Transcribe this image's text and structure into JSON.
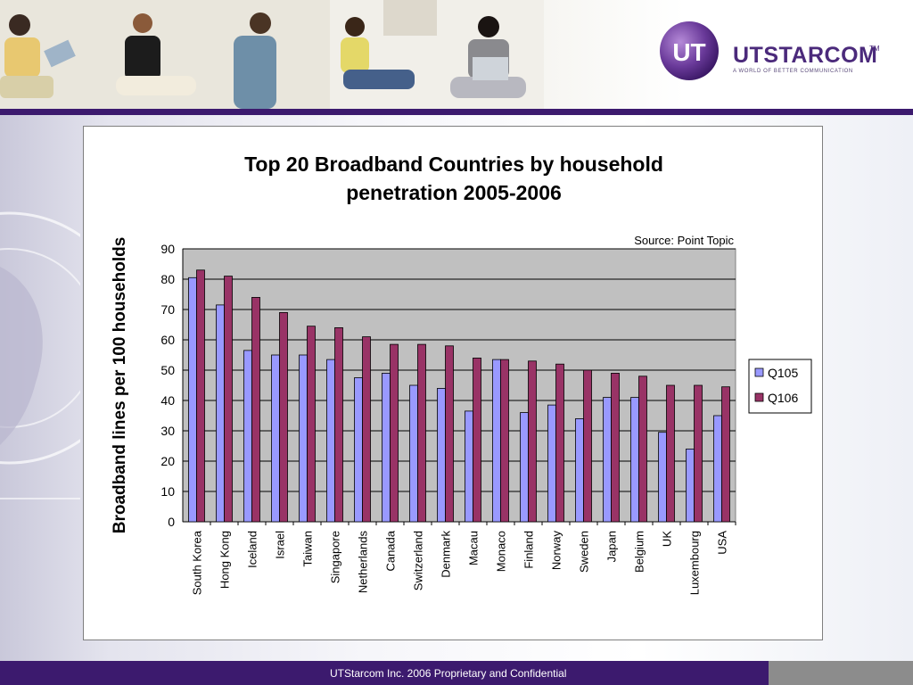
{
  "slide": {
    "logo_name": "UTSTARCOM",
    "logo_tm": "TM",
    "logo_tagline": "A WORLD OF BETTER COMMUNICATION",
    "footer_text": "UTStarcom Inc. 2006 Proprietary and Confidential"
  },
  "colors": {
    "header_rule": "#3c1a6e",
    "q105": "#9999ff",
    "q106": "#993366",
    "plot_bg": "#c0c0c0"
  },
  "chart_data": {
    "type": "bar",
    "title_lines": [
      "Top 20 Broadband Countries by household",
      "penetration 2005-2006"
    ],
    "source": "Source: Point Topic",
    "ylabel": "Broadband lines per 100 households",
    "xlabel": "",
    "ylim": [
      0,
      90
    ],
    "yticks": [
      0,
      10,
      20,
      30,
      40,
      50,
      60,
      70,
      80,
      90
    ],
    "grid": true,
    "legend_position": "right",
    "categories": [
      "South Korea",
      "Hong Kong",
      "Iceland",
      "Israel",
      "Taiwan",
      "Singapore",
      "Netherlands",
      "Canada",
      "Switzerland",
      "Denmark",
      "Macau",
      "Monaco",
      "Finland",
      "Norway",
      "Sweden",
      "Japan",
      "Belgium",
      "UK",
      "Luxembourg",
      "USA"
    ],
    "series": [
      {
        "name": "Q105",
        "values": [
          80.5,
          71.5,
          56.5,
          55,
          55,
          53.5,
          47.5,
          49,
          45,
          44,
          36.5,
          53.5,
          36,
          38.5,
          34,
          41,
          41,
          29.5,
          24,
          35
        ]
      },
      {
        "name": "Q106",
        "values": [
          83,
          81,
          74,
          69,
          64.5,
          64,
          61,
          58.5,
          58.5,
          58,
          54,
          53.5,
          53,
          52,
          50,
          49,
          48,
          45,
          45,
          44.5
        ]
      }
    ]
  }
}
